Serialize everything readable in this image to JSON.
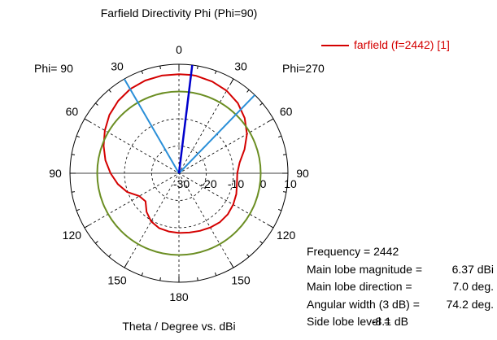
{
  "chart_data": {
    "type": "polar",
    "title": "Farfield Directivity Phi (Phi=90)",
    "xlabel": "Theta / Degree vs. dBi",
    "phi_left": "Phi= 90",
    "phi_right": "Phi=270",
    "angle_labels": [
      {
        "angle": 0,
        "text": "0"
      },
      {
        "angle": 30,
        "text": "30"
      },
      {
        "angle": 60,
        "text": "60"
      },
      {
        "angle": 90,
        "text": "90"
      },
      {
        "angle": 120,
        "text": "120"
      },
      {
        "angle": 150,
        "text": "150"
      },
      {
        "angle": 180,
        "text": "180"
      },
      {
        "angle": -150,
        "text": "150"
      },
      {
        "angle": -120,
        "text": "120"
      },
      {
        "angle": -90,
        "text": "90"
      },
      {
        "angle": -60,
        "text": "60"
      },
      {
        "angle": -30,
        "text": "30"
      }
    ],
    "radial_range": [
      -30,
      10
    ],
    "radial_ticks": [
      -30,
      -20,
      -10,
      0,
      10
    ],
    "radial_tick_labels": [
      "-30",
      "-20",
      "-10",
      "0",
      "10"
    ],
    "grid": true,
    "series": [
      {
        "name": "farfield (f=2442) [1]",
        "color": "#d40000",
        "theta": [
          -180,
          -170,
          -160,
          -150,
          -140,
          -130,
          -120,
          -110,
          -100,
          -90,
          -80,
          -70,
          -60,
          -50,
          -40,
          -30,
          -20,
          -10,
          0,
          7,
          10,
          20,
          30,
          40,
          50,
          60,
          70,
          80,
          90,
          100,
          110,
          120,
          130,
          140,
          150,
          160,
          170,
          180
        ],
        "values": [
          -8.1,
          -8.3,
          -8.6,
          -9.6,
          -11.5,
          -14.0,
          -13.2,
          -9.8,
          -7.2,
          -4.9,
          -2.6,
          -0.6,
          1.4,
          3.3,
          4.7,
          5.7,
          6.2,
          6.4,
          6.35,
          6.37,
          6.3,
          5.8,
          5.0,
          3.6,
          1.5,
          -1.2,
          -4.4,
          -7.4,
          -8.6,
          -8.4,
          -7.6,
          -7.0,
          -6.6,
          -6.6,
          -7.0,
          -7.5,
          -7.9,
          -8.1
        ]
      },
      {
        "name": "",
        "color": "#6b8e23",
        "theta": [
          0
        ],
        "values": [
          0
        ],
        "constant": 0
      }
    ],
    "main_lobe_direction": 7.0,
    "beam_edges": [
      -30.1,
      44.1
    ],
    "main_lobe_color": "#0000cc",
    "beam_edge_color": "#2a8fd8"
  },
  "legend_label": "farfield (f=2442) [1]",
  "info": {
    "frequency": "Frequency = 2442",
    "main_lobe_magnitude_label": "Main lobe magnitude =",
    "main_lobe_magnitude_value": "6.37 dBi",
    "main_lobe_direction_label": "Main lobe direction =",
    "main_lobe_direction_value": "7.0 deg.",
    "angular_width_label": "Angular width (3 dB) =",
    "angular_width_value": "74.2 deg.",
    "side_lobe_label": "Side lobe level =",
    "side_lobe_value": "-8.1 dB"
  }
}
